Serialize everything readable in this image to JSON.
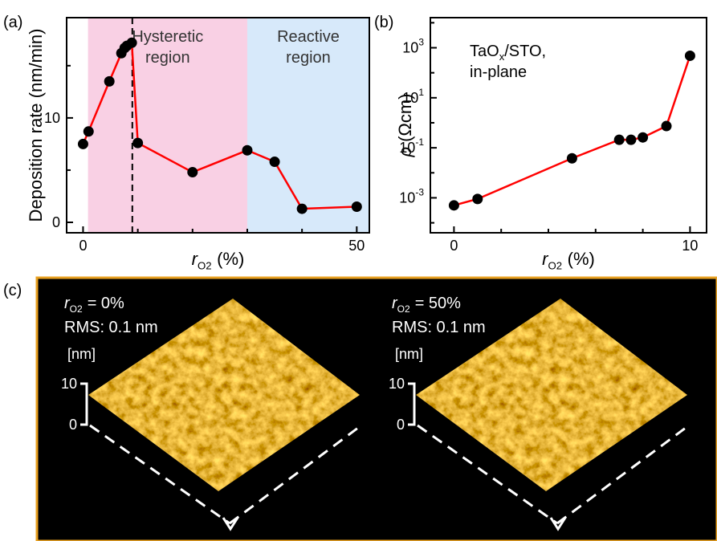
{
  "chart_data": [
    {
      "type": "line",
      "panel_label": "(a)",
      "x_label": {
        "symbol": "r",
        "subscript": "O2",
        "unit": "(%)"
      },
      "y_label": "Deposition rate (nm/min)",
      "x": [
        0,
        1,
        4.8,
        7,
        7.6,
        8,
        8.9,
        10,
        20,
        30,
        35,
        40,
        50
      ],
      "values": [
        7.5,
        8.7,
        13.5,
        16.2,
        16.7,
        16.9,
        17.2,
        7.6,
        4.8,
        6.9,
        5.8,
        1.3,
        1.5
      ],
      "color": "#ff0000",
      "marker_color": "#000000",
      "xlim": [
        -3,
        52.3
      ],
      "xticks": [
        0,
        50
      ],
      "minor_xticks": [
        10,
        20,
        30,
        40
      ],
      "ylim": [
        -1,
        19.6
      ],
      "yticks": [
        0,
        10
      ],
      "minor_yticks": [
        5,
        15
      ],
      "regions": [
        {
          "label": [
            "Hysteretic",
            "region"
          ],
          "from": 0.9,
          "to": 30,
          "color": "#f9d0e4"
        },
        {
          "label": [
            "Reactive",
            "region"
          ],
          "from": 30,
          "to": 52.3,
          "color": "#d7e9fa"
        }
      ],
      "vline": {
        "x": 9,
        "color": "#000000"
      }
    },
    {
      "type": "line",
      "panel_label": "(b)",
      "x_label": {
        "symbol": "r",
        "subscript": "O2",
        "unit": "(%)"
      },
      "y_label": {
        "symbol": "ρ",
        "unit": "(Ωcm)"
      },
      "annotation": {
        "formula": "TaO",
        "formula_sub": "x",
        "formula_rest": "/STO,",
        "line2": "in-plane"
      },
      "x": [
        0,
        1,
        5,
        7,
        7.5,
        8,
        9,
        10
      ],
      "values": [
        0.0005,
        0.0009,
        0.038,
        0.21,
        0.21,
        0.26,
        0.74,
        480
      ],
      "color": "#ff0000",
      "marker_color": "#000000",
      "log_y": true,
      "xlim": [
        -1,
        10.7
      ],
      "xticks": [
        0,
        10
      ],
      "minor_xticks": [
        2,
        4,
        6,
        8
      ],
      "ylim": [
        4e-05,
        16000
      ],
      "yticks": [
        {
          "value": 0.001,
          "label": "10",
          "exponent": "-3"
        },
        {
          "value": 0.1,
          "label": "10",
          "exponent": "-1"
        },
        {
          "value": 10,
          "label": "10",
          "exponent": "1"
        },
        {
          "value": 1000,
          "label": "10",
          "exponent": "3"
        }
      ],
      "minor_yticks": [
        0.0001,
        0.01,
        1,
        100,
        10000
      ]
    }
  ],
  "afm_panel": {
    "label": "(c)",
    "images": [
      {
        "condition": {
          "symbol": "r",
          "subscript": "O2",
          "text": "= 0%"
        },
        "rms": "RMS: 0.1 nm",
        "unit": "[nm]",
        "scale_top": 10,
        "scale_bottom": 0
      },
      {
        "condition": {
          "symbol": "r",
          "subscript": "O2",
          "text": "= 50%"
        },
        "rms": "RMS: 0.1 nm",
        "unit": "[nm]",
        "scale_top": 10,
        "scale_bottom": 0
      }
    ]
  }
}
